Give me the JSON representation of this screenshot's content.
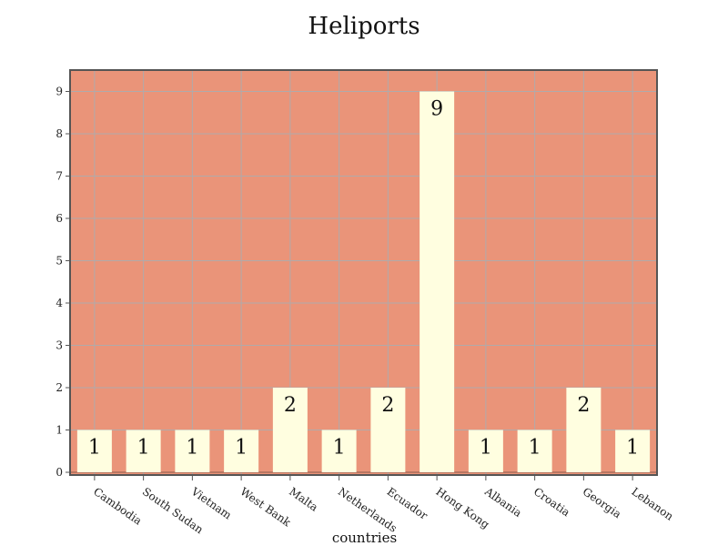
{
  "chart_data": {
    "type": "bar",
    "title": "Heliports",
    "xlabel": "countries",
    "ylabel": "",
    "categories": [
      "Cambodia",
      "South Sudan",
      "Vietnam",
      "West Bank",
      "Malta",
      "Netherlands",
      "Ecuador",
      "Hong Kong",
      "Albania",
      "Croatia",
      "Georgia",
      "Lebanon"
    ],
    "values": [
      1,
      1,
      1,
      1,
      2,
      1,
      2,
      9,
      1,
      1,
      2,
      1
    ],
    "ylim": [
      0,
      9.5
    ],
    "yticks": [
      0,
      1,
      2,
      3,
      4,
      5,
      6,
      7,
      8,
      9
    ],
    "grid": true,
    "legend": "none",
    "data_labels": true
  },
  "colors": {
    "plot_background": "#ea9479",
    "bar_fill": "#fffee0",
    "grid": "#b0aaaa",
    "frame": "#555555"
  }
}
